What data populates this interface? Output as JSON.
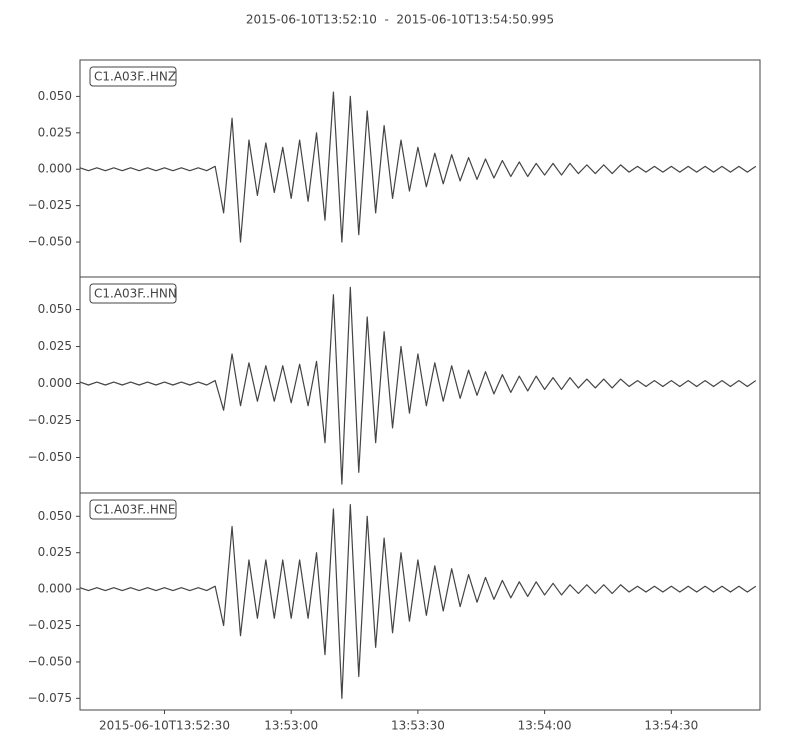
{
  "title": "2015-06-10T13:52:10  -  2015-06-10T13:54:50.995",
  "chart_data": [
    {
      "type": "line",
      "label": "C1.A03F..HNZ",
      "color": "#444444",
      "x": [
        0,
        2,
        4,
        6,
        8,
        10,
        12,
        14,
        16,
        18,
        20,
        22,
        24,
        26,
        28,
        30,
        32,
        34,
        36,
        38,
        40,
        42,
        44,
        46,
        48,
        50,
        52,
        54,
        56,
        58,
        60,
        62,
        64,
        66,
        68,
        70,
        72,
        74,
        76,
        78,
        80,
        82,
        84,
        86,
        88,
        90,
        92,
        94,
        96,
        98,
        100,
        102,
        104,
        106,
        108,
        110,
        112,
        114,
        116,
        118,
        120,
        122,
        124,
        126,
        128,
        130,
        132,
        134,
        136,
        138,
        140,
        142,
        144,
        146,
        148,
        150,
        152,
        154,
        156,
        158,
        160
      ],
      "values": [
        0.001,
        -0.001,
        0.001,
        -0.001,
        0.001,
        -0.001,
        0.001,
        -0.001,
        0.001,
        -0.001,
        0.001,
        -0.001,
        0.001,
        -0.001,
        0.001,
        -0.001,
        0.002,
        -0.03,
        0.035,
        -0.05,
        0.02,
        -0.018,
        0.018,
        -0.016,
        0.015,
        -0.02,
        0.02,
        -0.022,
        0.025,
        -0.035,
        0.053,
        -0.05,
        0.05,
        -0.045,
        0.04,
        -0.03,
        0.03,
        -0.02,
        0.02,
        -0.015,
        0.015,
        -0.012,
        0.011,
        -0.01,
        0.01,
        -0.008,
        0.008,
        -0.007,
        0.007,
        -0.006,
        0.006,
        -0.005,
        0.005,
        -0.005,
        0.004,
        -0.004,
        0.004,
        -0.004,
        0.004,
        -0.003,
        0.003,
        -0.003,
        0.003,
        -0.003,
        0.003,
        -0.002,
        0.002,
        -0.002,
        0.002,
        -0.002,
        0.002,
        -0.002,
        0.002,
        -0.002,
        0.002,
        -0.002,
        0.002,
        -0.002,
        0.002,
        -0.002,
        0.002
      ],
      "xlim": [
        0,
        160.995
      ],
      "ylim": [
        -0.074,
        0.075
      ],
      "yticks": [
        {
          "value": -0.05,
          "label": "−0.050"
        },
        {
          "value": -0.025,
          "label": "−0.025"
        },
        {
          "value": 0,
          "label": "0.000"
        },
        {
          "value": 0.025,
          "label": "0.025"
        },
        {
          "value": 0.05,
          "label": "0.050"
        }
      ]
    },
    {
      "type": "line",
      "label": "C1.A03F..HNN",
      "color": "#444444",
      "x": [
        0,
        2,
        4,
        6,
        8,
        10,
        12,
        14,
        16,
        18,
        20,
        22,
        24,
        26,
        28,
        30,
        32,
        34,
        36,
        38,
        40,
        42,
        44,
        46,
        48,
        50,
        52,
        54,
        56,
        58,
        60,
        62,
        64,
        66,
        68,
        70,
        72,
        74,
        76,
        78,
        80,
        82,
        84,
        86,
        88,
        90,
        92,
        94,
        96,
        98,
        100,
        102,
        104,
        106,
        108,
        110,
        112,
        114,
        116,
        118,
        120,
        122,
        124,
        126,
        128,
        130,
        132,
        134,
        136,
        138,
        140,
        142,
        144,
        146,
        148,
        150,
        152,
        154,
        156,
        158,
        160
      ],
      "values": [
        0.001,
        -0.001,
        0.001,
        -0.001,
        0.001,
        -0.001,
        0.001,
        -0.001,
        0.001,
        -0.001,
        0.001,
        -0.001,
        0.001,
        -0.001,
        0.001,
        -0.001,
        0.002,
        -0.018,
        0.02,
        -0.015,
        0.014,
        -0.012,
        0.012,
        -0.012,
        0.012,
        -0.013,
        0.013,
        -0.015,
        0.015,
        -0.04,
        0.06,
        -0.068,
        0.065,
        -0.06,
        0.045,
        -0.04,
        0.035,
        -0.03,
        0.025,
        -0.02,
        0.02,
        -0.015,
        0.014,
        -0.012,
        0.012,
        -0.01,
        0.009,
        -0.008,
        0.008,
        -0.007,
        0.006,
        -0.006,
        0.005,
        -0.005,
        0.005,
        -0.004,
        0.004,
        -0.004,
        0.004,
        -0.003,
        0.003,
        -0.003,
        0.003,
        -0.003,
        0.003,
        -0.002,
        0.002,
        -0.002,
        0.002,
        -0.002,
        0.002,
        -0.002,
        0.002,
        -0.002,
        0.002,
        -0.002,
        0.002,
        -0.002,
        0.002,
        -0.002,
        0.002
      ],
      "xlim": [
        0,
        160.995
      ],
      "ylim": [
        -0.074,
        0.072
      ],
      "yticks": [
        {
          "value": -0.05,
          "label": "−0.050"
        },
        {
          "value": -0.025,
          "label": "−0.025"
        },
        {
          "value": 0,
          "label": "0.000"
        },
        {
          "value": 0.025,
          "label": "0.025"
        },
        {
          "value": 0.05,
          "label": "0.050"
        }
      ]
    },
    {
      "type": "line",
      "label": "C1.A03F..HNE",
      "color": "#444444",
      "x": [
        0,
        2,
        4,
        6,
        8,
        10,
        12,
        14,
        16,
        18,
        20,
        22,
        24,
        26,
        28,
        30,
        32,
        34,
        36,
        38,
        40,
        42,
        44,
        46,
        48,
        50,
        52,
        54,
        56,
        58,
        60,
        62,
        64,
        66,
        68,
        70,
        72,
        74,
        76,
        78,
        80,
        82,
        84,
        86,
        88,
        90,
        92,
        94,
        96,
        98,
        100,
        102,
        104,
        106,
        108,
        110,
        112,
        114,
        116,
        118,
        120,
        122,
        124,
        126,
        128,
        130,
        132,
        134,
        136,
        138,
        140,
        142,
        144,
        146,
        148,
        150,
        152,
        154,
        156,
        158,
        160
      ],
      "values": [
        0.001,
        -0.001,
        0.001,
        -0.001,
        0.001,
        -0.001,
        0.001,
        -0.001,
        0.001,
        -0.001,
        0.001,
        -0.001,
        0.001,
        -0.001,
        0.001,
        -0.001,
        0.002,
        -0.025,
        0.043,
        -0.032,
        0.02,
        -0.02,
        0.02,
        -0.02,
        0.02,
        -0.02,
        0.02,
        -0.02,
        0.025,
        -0.045,
        0.055,
        -0.075,
        0.058,
        -0.06,
        0.05,
        -0.04,
        0.035,
        -0.03,
        0.025,
        -0.022,
        0.02,
        -0.018,
        0.016,
        -0.015,
        0.014,
        -0.012,
        0.01,
        -0.009,
        0.008,
        -0.007,
        0.006,
        -0.006,
        0.005,
        -0.005,
        0.005,
        -0.004,
        0.004,
        -0.004,
        0.003,
        -0.003,
        0.003,
        -0.003,
        0.003,
        -0.003,
        0.003,
        -0.002,
        0.002,
        -0.002,
        0.002,
        -0.002,
        0.002,
        -0.002,
        0.002,
        -0.002,
        0.002,
        -0.002,
        0.002,
        -0.002,
        0.002,
        -0.002,
        0.002
      ],
      "xlim": [
        0,
        160.995
      ],
      "ylim": [
        -0.083,
        0.066
      ],
      "yticks": [
        {
          "value": -0.075,
          "label": "−0.075"
        },
        {
          "value": -0.05,
          "label": "−0.050"
        },
        {
          "value": -0.025,
          "label": "−0.025"
        },
        {
          "value": 0,
          "label": "0.000"
        },
        {
          "value": 0.025,
          "label": "0.025"
        },
        {
          "value": 0.05,
          "label": "0.050"
        }
      ],
      "xticks": [
        {
          "value": 20,
          "label": "2015-06-10T13:52:30"
        },
        {
          "value": 50,
          "label": "13:53:00"
        },
        {
          "value": 80,
          "label": "13:53:30"
        },
        {
          "value": 110,
          "label": "13:54:00"
        },
        {
          "value": 140,
          "label": "13:54:30"
        }
      ]
    }
  ]
}
